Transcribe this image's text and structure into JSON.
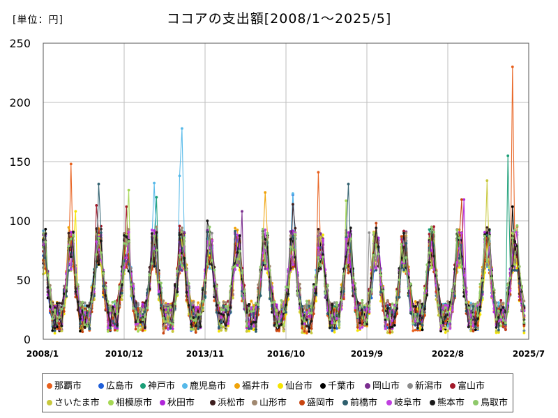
{
  "header": {
    "unit_label": "[単位：円]"
  },
  "chart_data": {
    "type": "line",
    "title": "ココアの支出額[2008/1～2025/5]",
    "xlabel": "",
    "ylabel": "",
    "ylim": [
      0,
      250
    ],
    "y_ticks": [
      0,
      50,
      100,
      150,
      200,
      250
    ],
    "x_range": [
      "2008/1",
      "2025/7"
    ],
    "x_ticks": [
      "2008/1",
      "2010/12",
      "2013/11",
      "2016/10",
      "2019/9",
      "2022/8",
      "2025/7"
    ],
    "grid": true,
    "legend_position": "bottom",
    "series": [
      {
        "name": "那覇市",
        "color": "#e8601c",
        "peaks": [
          {
            "x": "2009/1",
            "y": 148
          },
          {
            "x": "2017/12",
            "y": 141
          },
          {
            "x": "2024/12",
            "y": 230
          },
          {
            "x": "2025/2",
            "y": 95
          }
        ]
      },
      {
        "name": "広島市",
        "color": "#1f5fd9",
        "peaks": [
          {
            "x": "2017/1",
            "y": 122
          },
          {
            "x": "2021/2",
            "y": 83
          }
        ]
      },
      {
        "name": "神戸市",
        "color": "#1a9e77",
        "peaks": [
          {
            "x": "2012/2",
            "y": 120
          },
          {
            "x": "2024/10",
            "y": 155
          }
        ]
      },
      {
        "name": "鹿児島市",
        "color": "#56b9e9",
        "peaks": [
          {
            "x": "2012/1",
            "y": 132
          },
          {
            "x": "2013/1",
            "y": 178
          },
          {
            "x": "2012/12",
            "y": 138
          },
          {
            "x": "2017/1",
            "y": 123
          }
        ]
      },
      {
        "name": "福井市",
        "color": "#f0a30a",
        "peaks": [
          {
            "x": "2016/1",
            "y": 124
          }
        ]
      },
      {
        "name": "仙台市",
        "color": "#f5e400",
        "peaks": [
          {
            "x": "2009/3",
            "y": 108
          }
        ]
      },
      {
        "name": "千葉市",
        "color": "#000000",
        "peaks": [
          {
            "x": "2008/2",
            "y": 93
          },
          {
            "x": "2024/12",
            "y": 112
          }
        ]
      },
      {
        "name": "岡山市",
        "color": "#7b2e8f",
        "peaks": [
          {
            "x": "2015/3",
            "y": 108
          }
        ]
      },
      {
        "name": "新潟市",
        "color": "#8c8c8c",
        "peaks": [
          {
            "x": "2019/10",
            "y": 90
          }
        ]
      },
      {
        "name": "富山市",
        "color": "#a31a2a",
        "peaks": [
          {
            "x": "2011/1",
            "y": 112
          },
          {
            "x": "2009/12",
            "y": 113
          }
        ]
      },
      {
        "name": "さいたま市",
        "color": "#c8c83c",
        "peaks": [
          {
            "x": "2024/1",
            "y": 134
          }
        ]
      },
      {
        "name": "相模原市",
        "color": "#a6d854",
        "peaks": [
          {
            "x": "2011/2",
            "y": 126
          },
          {
            "x": "2018/12",
            "y": 117
          }
        ]
      },
      {
        "name": "秋田市",
        "color": "#b026d9",
        "peaks": [
          {
            "x": "2023/3",
            "y": 118
          }
        ]
      },
      {
        "name": "浜松市",
        "color": "#3d1e1e",
        "peaks": [
          {
            "x": "2017/1",
            "y": 114
          }
        ]
      },
      {
        "name": "山形市",
        "color": "#a08870",
        "peaks": [
          {
            "x": "2022/1",
            "y": 95
          }
        ]
      },
      {
        "name": "盛岡市",
        "color": "#c84510",
        "peaks": [
          {
            "x": "2020/1",
            "y": 98
          },
          {
            "x": "2023/2",
            "y": 118
          }
        ]
      },
      {
        "name": "前橋市",
        "color": "#2e5f6e",
        "peaks": [
          {
            "x": "2010/1",
            "y": 131
          },
          {
            "x": "2019/1",
            "y": 131
          }
        ]
      },
      {
        "name": "岐阜市",
        "color": "#c040e0",
        "peaks": [
          {
            "x": "2015/1",
            "y": 88
          }
        ]
      },
      {
        "name": "熊本市",
        "color": "#1a1a1a",
        "peaks": [
          {
            "x": "2013/12",
            "y": 100
          }
        ]
      },
      {
        "name": "鳥取市",
        "color": "#8fc96b",
        "peaks": [
          {
            "x": "2020/12",
            "y": 80
          }
        ]
      }
    ]
  }
}
